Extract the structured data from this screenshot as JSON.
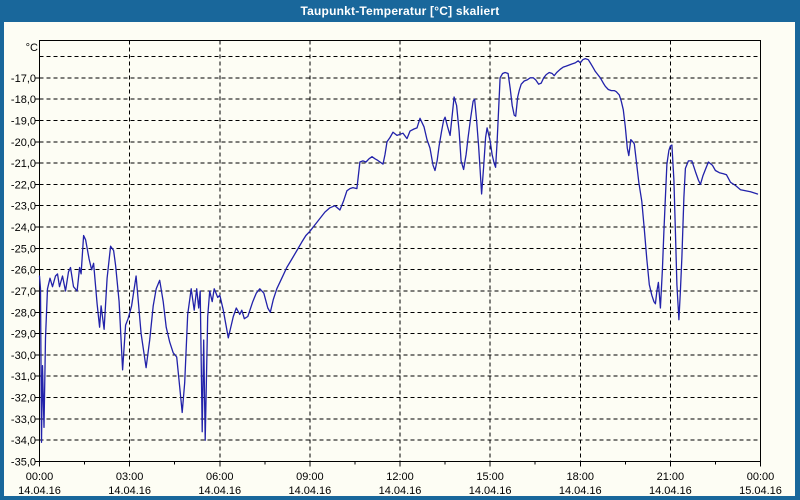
{
  "window": {
    "title": "Taupunkt-Temperatur [°C] skaliert"
  },
  "colors": {
    "titlebar": "#19679b",
    "window_border": "#19679b",
    "content_bg": "#fdfdf4",
    "grid": "#000000",
    "axis": "#000000",
    "line": "#2222aa",
    "label_text": "#000000"
  },
  "chart_data": {
    "type": "line",
    "title": "Taupunkt-Temperatur [°C] skaliert",
    "ylabel": "°C",
    "xlabel": "",
    "grid": true,
    "legend": null,
    "y_range": [
      -35,
      -15.25
    ],
    "x_range_minutes": [
      0,
      1440
    ],
    "y_tick_labels": [
      "-17,0",
      "-18,0",
      "-19,0",
      "-20,0",
      "-21,0",
      "-22,0",
      "-23,0",
      "-24,0",
      "-25,0",
      "-26,0",
      "-27,0",
      "-28,0",
      "-29,0",
      "-30,0",
      "-31,0",
      "-32,0",
      "-33,0",
      "-34,0",
      "-35,0"
    ],
    "y_tick_values": [
      -17,
      -18,
      -19,
      -20,
      -21,
      -22,
      -23,
      -24,
      -25,
      -26,
      -27,
      -28,
      -29,
      -30,
      -31,
      -32,
      -33,
      -34,
      -35
    ],
    "y_gridline_values": [
      -16,
      -17,
      -18,
      -19,
      -20,
      -21,
      -22,
      -23,
      -24,
      -25,
      -26,
      -27,
      -28,
      -29,
      -30,
      -31,
      -32,
      -33,
      -34
    ],
    "x_ticks": [
      {
        "minutes": 0,
        "time": "00:00",
        "date": "14.04.16"
      },
      {
        "minutes": 180,
        "time": "03:00",
        "date": "14.04.16"
      },
      {
        "minutes": 360,
        "time": "06:00",
        "date": "14.04.16"
      },
      {
        "minutes": 540,
        "time": "09:00",
        "date": "14.04.16"
      },
      {
        "minutes": 720,
        "time": "12:00",
        "date": "14.04.16"
      },
      {
        "minutes": 900,
        "time": "15:00",
        "date": "14.04.16"
      },
      {
        "minutes": 1080,
        "time": "18:00",
        "date": "14.04.16"
      },
      {
        "minutes": 1260,
        "time": "21:00",
        "date": "14.04.16"
      },
      {
        "minutes": 1440,
        "time": "00:00",
        "date": "15.04.16"
      }
    ],
    "x_minor_tick_step_minutes": 90,
    "series": [
      {
        "name": "Taupunkt",
        "color": "#2222aa",
        "points": [
          [
            0,
            -26.3
          ],
          [
            2,
            -26.9
          ],
          [
            4,
            -34.1
          ],
          [
            6,
            -30.5
          ],
          [
            9,
            -33.4
          ],
          [
            12,
            -29.2
          ],
          [
            16,
            -26.9
          ],
          [
            21,
            -26.4
          ],
          [
            26,
            -26.8
          ],
          [
            32,
            -26.3
          ],
          [
            36,
            -26.2
          ],
          [
            40,
            -26.8
          ],
          [
            46,
            -26.3
          ],
          [
            52,
            -27.0
          ],
          [
            58,
            -26.1
          ],
          [
            62,
            -25.9
          ],
          [
            68,
            -26.8
          ],
          [
            75,
            -27.0
          ],
          [
            80,
            -25.9
          ],
          [
            83,
            -26.2
          ],
          [
            88,
            -24.4
          ],
          [
            92,
            -24.6
          ],
          [
            99,
            -25.5
          ],
          [
            104,
            -26.0
          ],
          [
            108,
            -25.7
          ],
          [
            115,
            -27.6
          ],
          [
            120,
            -28.7
          ],
          [
            123,
            -27.7
          ],
          [
            129,
            -28.8
          ],
          [
            135,
            -26.4
          ],
          [
            142,
            -24.9
          ],
          [
            148,
            -25.1
          ],
          [
            152,
            -25.8
          ],
          [
            159,
            -27.5
          ],
          [
            166,
            -30.7
          ],
          [
            172,
            -28.6
          ],
          [
            177,
            -28.3
          ],
          [
            184,
            -27.7
          ],
          [
            193,
            -26.3
          ],
          [
            203,
            -29.0
          ],
          [
            213,
            -30.6
          ],
          [
            220,
            -29.3
          ],
          [
            227,
            -27.7
          ],
          [
            233,
            -26.9
          ],
          [
            240,
            -26.5
          ],
          [
            247,
            -27.5
          ],
          [
            253,
            -28.7
          ],
          [
            260,
            -29.4
          ],
          [
            267,
            -29.9
          ],
          [
            274,
            -30.1
          ],
          [
            280,
            -31.5
          ],
          [
            285,
            -32.7
          ],
          [
            290,
            -31.3
          ],
          [
            296,
            -28.1
          ],
          [
            303,
            -26.9
          ],
          [
            309,
            -27.9
          ],
          [
            314,
            -26.9
          ],
          [
            318,
            -27.8
          ],
          [
            321,
            -27.0
          ],
          [
            325,
            -33.6
          ],
          [
            328,
            -29.3
          ],
          [
            331,
            -34.0
          ],
          [
            336,
            -28.2
          ],
          [
            340,
            -27.0
          ],
          [
            345,
            -27.5
          ],
          [
            349,
            -26.9
          ],
          [
            356,
            -27.3
          ],
          [
            360,
            -27.2
          ],
          [
            367,
            -27.9
          ],
          [
            377,
            -29.2
          ],
          [
            387,
            -28.2
          ],
          [
            393,
            -27.8
          ],
          [
            400,
            -28.1
          ],
          [
            404,
            -27.9
          ],
          [
            409,
            -28.3
          ],
          [
            416,
            -28.2
          ],
          [
            426,
            -27.5
          ],
          [
            433,
            -27.1
          ],
          [
            440,
            -26.9
          ],
          [
            448,
            -27.1
          ],
          [
            456,
            -27.8
          ],
          [
            461,
            -28.0
          ],
          [
            467,
            -27.4
          ],
          [
            474,
            -26.9
          ],
          [
            484,
            -26.4
          ],
          [
            494,
            -25.9
          ],
          [
            504,
            -25.5
          ],
          [
            514,
            -25.1
          ],
          [
            524,
            -24.7
          ],
          [
            532,
            -24.4
          ],
          [
            540,
            -24.2
          ],
          [
            550,
            -23.9
          ],
          [
            560,
            -23.6
          ],
          [
            570,
            -23.3
          ],
          [
            580,
            -23.1
          ],
          [
            590,
            -23.0
          ],
          [
            600,
            -23.2
          ],
          [
            607,
            -22.8
          ],
          [
            614,
            -22.3
          ],
          [
            620,
            -22.2
          ],
          [
            626,
            -22.15
          ],
          [
            634,
            -22.2
          ],
          [
            640,
            -20.95
          ],
          [
            646,
            -20.9
          ],
          [
            652,
            -20.95
          ],
          [
            658,
            -20.8
          ],
          [
            664,
            -20.7
          ],
          [
            670,
            -20.8
          ],
          [
            674,
            -20.85
          ],
          [
            680,
            -20.95
          ],
          [
            686,
            -21.05
          ],
          [
            690,
            -20.6
          ],
          [
            694,
            -20.0
          ],
          [
            700,
            -19.8
          ],
          [
            706,
            -19.55
          ],
          [
            714,
            -19.7
          ],
          [
            720,
            -19.65
          ],
          [
            726,
            -19.6
          ],
          [
            734,
            -19.85
          ],
          [
            740,
            -19.5
          ],
          [
            748,
            -19.4
          ],
          [
            754,
            -19.35
          ],
          [
            760,
            -18.9
          ],
          [
            768,
            -19.3
          ],
          [
            774,
            -19.9
          ],
          [
            780,
            -20.3
          ],
          [
            786,
            -21.1
          ],
          [
            790,
            -21.35
          ],
          [
            794,
            -20.9
          ],
          [
            798,
            -20.2
          ],
          [
            803,
            -19.5
          ],
          [
            807,
            -19.0
          ],
          [
            810,
            -18.85
          ],
          [
            815,
            -19.3
          ],
          [
            820,
            -19.7
          ],
          [
            824,
            -18.8
          ],
          [
            828,
            -17.9
          ],
          [
            833,
            -18.3
          ],
          [
            838,
            -19.5
          ],
          [
            842,
            -20.9
          ],
          [
            847,
            -21.3
          ],
          [
            852,
            -20.6
          ],
          [
            856,
            -19.8
          ],
          [
            861,
            -18.9
          ],
          [
            866,
            -18.1
          ],
          [
            869,
            -18.0
          ],
          [
            873,
            -19.0
          ],
          [
            877,
            -20.2
          ],
          [
            880,
            -21.3
          ],
          [
            883,
            -22.45
          ],
          [
            887,
            -21.2
          ],
          [
            891,
            -19.8
          ],
          [
            894,
            -19.35
          ],
          [
            900,
            -19.95
          ],
          [
            904,
            -20.6
          ],
          [
            908,
            -21.0
          ],
          [
            911,
            -21.2
          ],
          [
            914,
            -20.0
          ],
          [
            917,
            -18.5
          ],
          [
            920,
            -17.0
          ],
          [
            925,
            -16.8
          ],
          [
            930,
            -16.75
          ],
          [
            936,
            -16.8
          ],
          [
            940,
            -17.5
          ],
          [
            944,
            -18.3
          ],
          [
            948,
            -18.75
          ],
          [
            951,
            -18.8
          ],
          [
            955,
            -17.9
          ],
          [
            958,
            -17.6
          ],
          [
            962,
            -17.3
          ],
          [
            968,
            -17.15
          ],
          [
            974,
            -17.1
          ],
          [
            980,
            -17.0
          ],
          [
            986,
            -17.0
          ],
          [
            991,
            -17.1
          ],
          [
            997,
            -17.3
          ],
          [
            1002,
            -17.25
          ],
          [
            1007,
            -17.0
          ],
          [
            1012,
            -16.85
          ],
          [
            1018,
            -16.75
          ],
          [
            1024,
            -16.8
          ],
          [
            1028,
            -16.9
          ],
          [
            1033,
            -16.75
          ],
          [
            1040,
            -16.6
          ],
          [
            1046,
            -16.5
          ],
          [
            1052,
            -16.45
          ],
          [
            1058,
            -16.4
          ],
          [
            1064,
            -16.35
          ],
          [
            1070,
            -16.3
          ],
          [
            1076,
            -16.2
          ],
          [
            1080,
            -16.3
          ],
          [
            1085,
            -16.15
          ],
          [
            1090,
            -16.1
          ],
          [
            1096,
            -16.15
          ],
          [
            1100,
            -16.3
          ],
          [
            1105,
            -16.5
          ],
          [
            1110,
            -16.7
          ],
          [
            1115,
            -16.85
          ],
          [
            1120,
            -17.0
          ],
          [
            1126,
            -17.25
          ],
          [
            1130,
            -17.4
          ],
          [
            1136,
            -17.55
          ],
          [
            1142,
            -17.6
          ],
          [
            1148,
            -17.6
          ],
          [
            1152,
            -17.65
          ],
          [
            1158,
            -17.8
          ],
          [
            1162,
            -18.1
          ],
          [
            1166,
            -18.5
          ],
          [
            1170,
            -19.3
          ],
          [
            1174,
            -20.3
          ],
          [
            1177,
            -20.65
          ],
          [
            1181,
            -19.9
          ],
          [
            1185,
            -20.0
          ],
          [
            1188,
            -20.1
          ],
          [
            1192,
            -20.9
          ],
          [
            1197,
            -21.9
          ],
          [
            1203,
            -22.8
          ],
          [
            1208,
            -24.1
          ],
          [
            1213,
            -25.5
          ],
          [
            1218,
            -26.7
          ],
          [
            1223,
            -27.2
          ],
          [
            1227,
            -27.5
          ],
          [
            1230,
            -27.6
          ],
          [
            1233,
            -27.0
          ],
          [
            1236,
            -26.6
          ],
          [
            1240,
            -27.8
          ],
          [
            1244,
            -26.0
          ],
          [
            1247,
            -24.2
          ],
          [
            1250,
            -22.6
          ],
          [
            1253,
            -21.05
          ],
          [
            1257,
            -20.4
          ],
          [
            1260,
            -20.2
          ],
          [
            1263,
            -20.15
          ],
          [
            1267,
            -21.8
          ],
          [
            1270,
            -24.2
          ],
          [
            1273,
            -26.7
          ],
          [
            1277,
            -28.35
          ],
          [
            1280,
            -27.0
          ],
          [
            1283,
            -25.4
          ],
          [
            1287,
            -22.6
          ],
          [
            1290,
            -21.25
          ],
          [
            1296,
            -20.9
          ],
          [
            1303,
            -20.9
          ],
          [
            1310,
            -21.4
          ],
          [
            1316,
            -21.8
          ],
          [
            1320,
            -22.0
          ],
          [
            1325,
            -21.6
          ],
          [
            1330,
            -21.3
          ],
          [
            1336,
            -20.95
          ],
          [
            1344,
            -21.1
          ],
          [
            1350,
            -21.35
          ],
          [
            1358,
            -21.45
          ],
          [
            1366,
            -21.5
          ],
          [
            1372,
            -21.55
          ],
          [
            1380,
            -21.9
          ],
          [
            1390,
            -22.05
          ],
          [
            1400,
            -22.25
          ],
          [
            1410,
            -22.3
          ],
          [
            1420,
            -22.35
          ],
          [
            1434,
            -22.45
          ]
        ]
      }
    ]
  }
}
